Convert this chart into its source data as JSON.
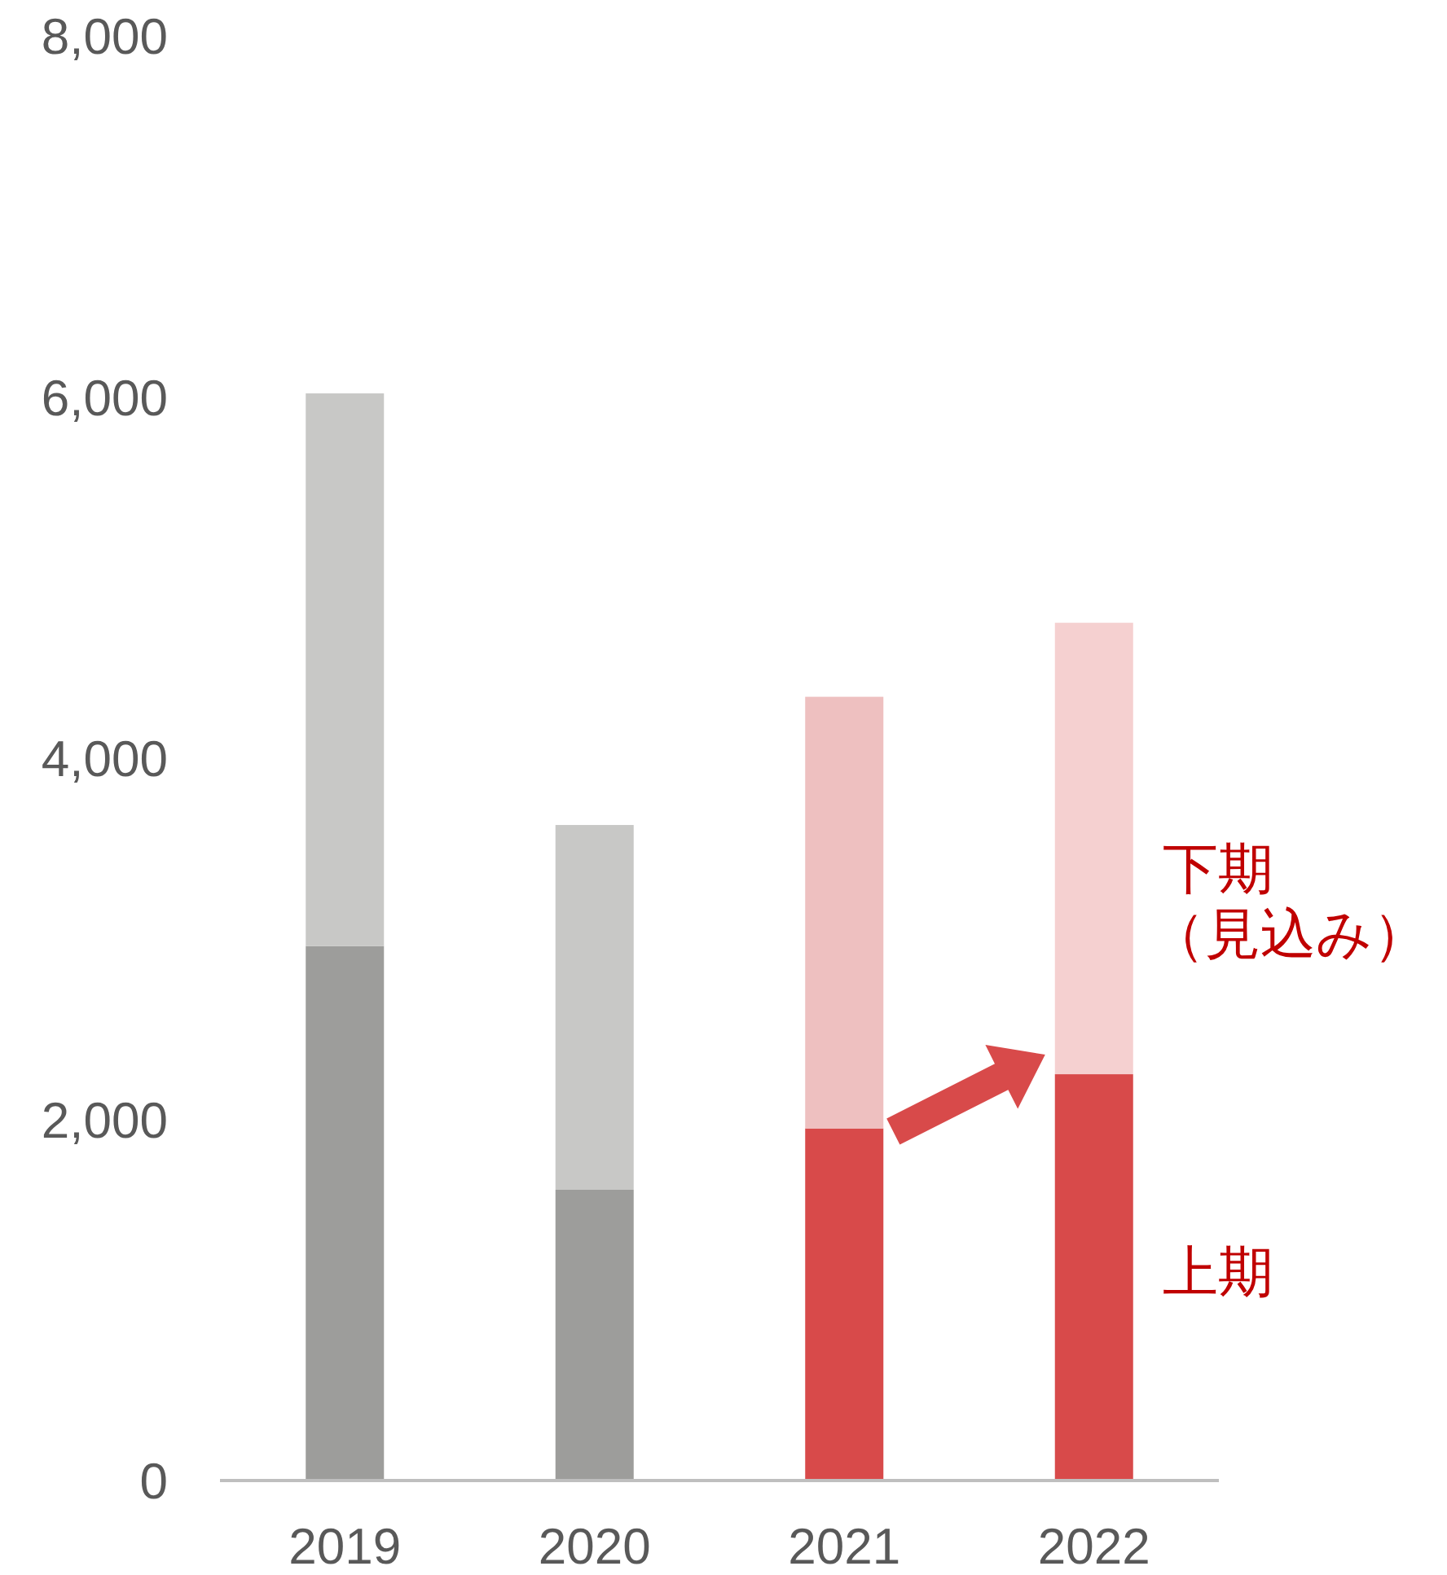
{
  "chart_data": {
    "type": "bar",
    "stacked": true,
    "legend": false,
    "categories": [
      "2019",
      "2020",
      "2021",
      "2022"
    ],
    "ylim": [
      0,
      8000
    ],
    "yticks": [
      0,
      {
        "value": 2000,
        "label": "2,000"
      },
      {
        "value": 4000,
        "label": "4,000"
      },
      {
        "value": 6000,
        "label": "6,000"
      },
      {
        "value": 8000,
        "label": "8,000"
      }
    ],
    "series": [
      {
        "name": "上期",
        "colors": [
          "#9d9d9b",
          "#9d9d9b",
          "#d84a4a",
          "#d84a4a"
        ],
        "values": [
          2960,
          1610,
          1950,
          2250
        ]
      },
      {
        "name": "下期（見込み）",
        "colors": [
          "#c8c8c6",
          "#c8c8c6",
          "#eec0c0",
          "#f5d0d0"
        ],
        "values": [
          3060,
          2020,
          2390,
          2500
        ]
      }
    ]
  }
}
